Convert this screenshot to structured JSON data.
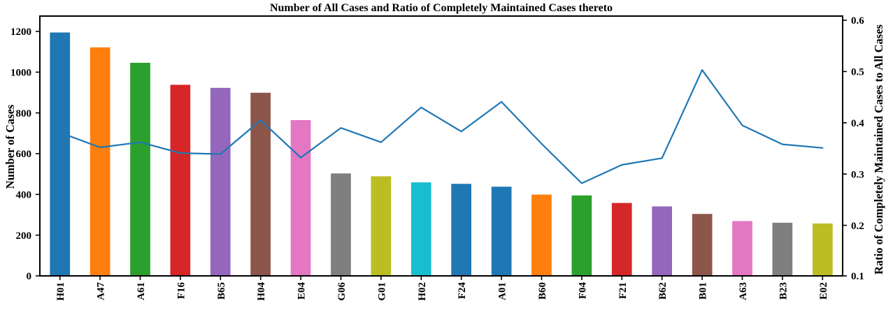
{
  "chart_data": {
    "type": "bar+line",
    "title": "Number of All Cases and Ratio of Completely Maintained Cases thereto",
    "categories": [
      "H01",
      "A47",
      "A61",
      "F16",
      "B65",
      "H04",
      "E04",
      "G06",
      "G01",
      "H02",
      "F24",
      "A01",
      "B60",
      "F04",
      "F21",
      "B62",
      "B01",
      "A63",
      "B23",
      "E02"
    ],
    "series": [
      {
        "name": "Number of All Cases",
        "type": "bar",
        "axis": "left",
        "values": [
          1195,
          1122,
          1046,
          938,
          923,
          899,
          765,
          503,
          489,
          459,
          452,
          438,
          399,
          395,
          358,
          341,
          304,
          269,
          261,
          257
        ],
        "bar_colors": [
          "#1f77b4",
          "#ff7f0e",
          "#2ca02c",
          "#d62728",
          "#9467bd",
          "#8c564b",
          "#e377c2",
          "#7f7f7f",
          "#bcbd22",
          "#17becf",
          "#1f77b4",
          "#1f77b4",
          "#ff7f0e",
          "#2ca02c",
          "#d62728",
          "#9467bd",
          "#8c564b",
          "#e377c2",
          "#7f7f7f",
          "#bcbd22"
        ]
      },
      {
        "name": "Ratio of Completely Maintained Cases to All Cases",
        "type": "line",
        "axis": "right",
        "values": [
          0.381,
          0.352,
          0.362,
          0.341,
          0.339,
          0.405,
          0.332,
          0.39,
          0.362,
          0.43,
          0.383,
          0.441,
          0.359,
          0.282,
          0.318,
          0.331,
          0.503,
          0.395,
          0.358,
          0.351
        ],
        "color": "#1f77b4"
      }
    ],
    "left_axis": {
      "label": "Number of Cases",
      "ticks": [
        0,
        200,
        400,
        600,
        800,
        1000,
        1200
      ],
      "range": [
        0,
        1290
      ]
    },
    "right_axis": {
      "label": "Ratio of Completely Maintained Cases to All Cases",
      "ticks": [
        0.1,
        0.2,
        0.3,
        0.4,
        0.5,
        0.6
      ],
      "range": [
        0.1,
        0.61
      ]
    },
    "x_axis": {
      "tick_rotation": 90
    },
    "grid": false,
    "legend": "none",
    "frame_color": "#000000",
    "background_color": "#ffffff"
  }
}
